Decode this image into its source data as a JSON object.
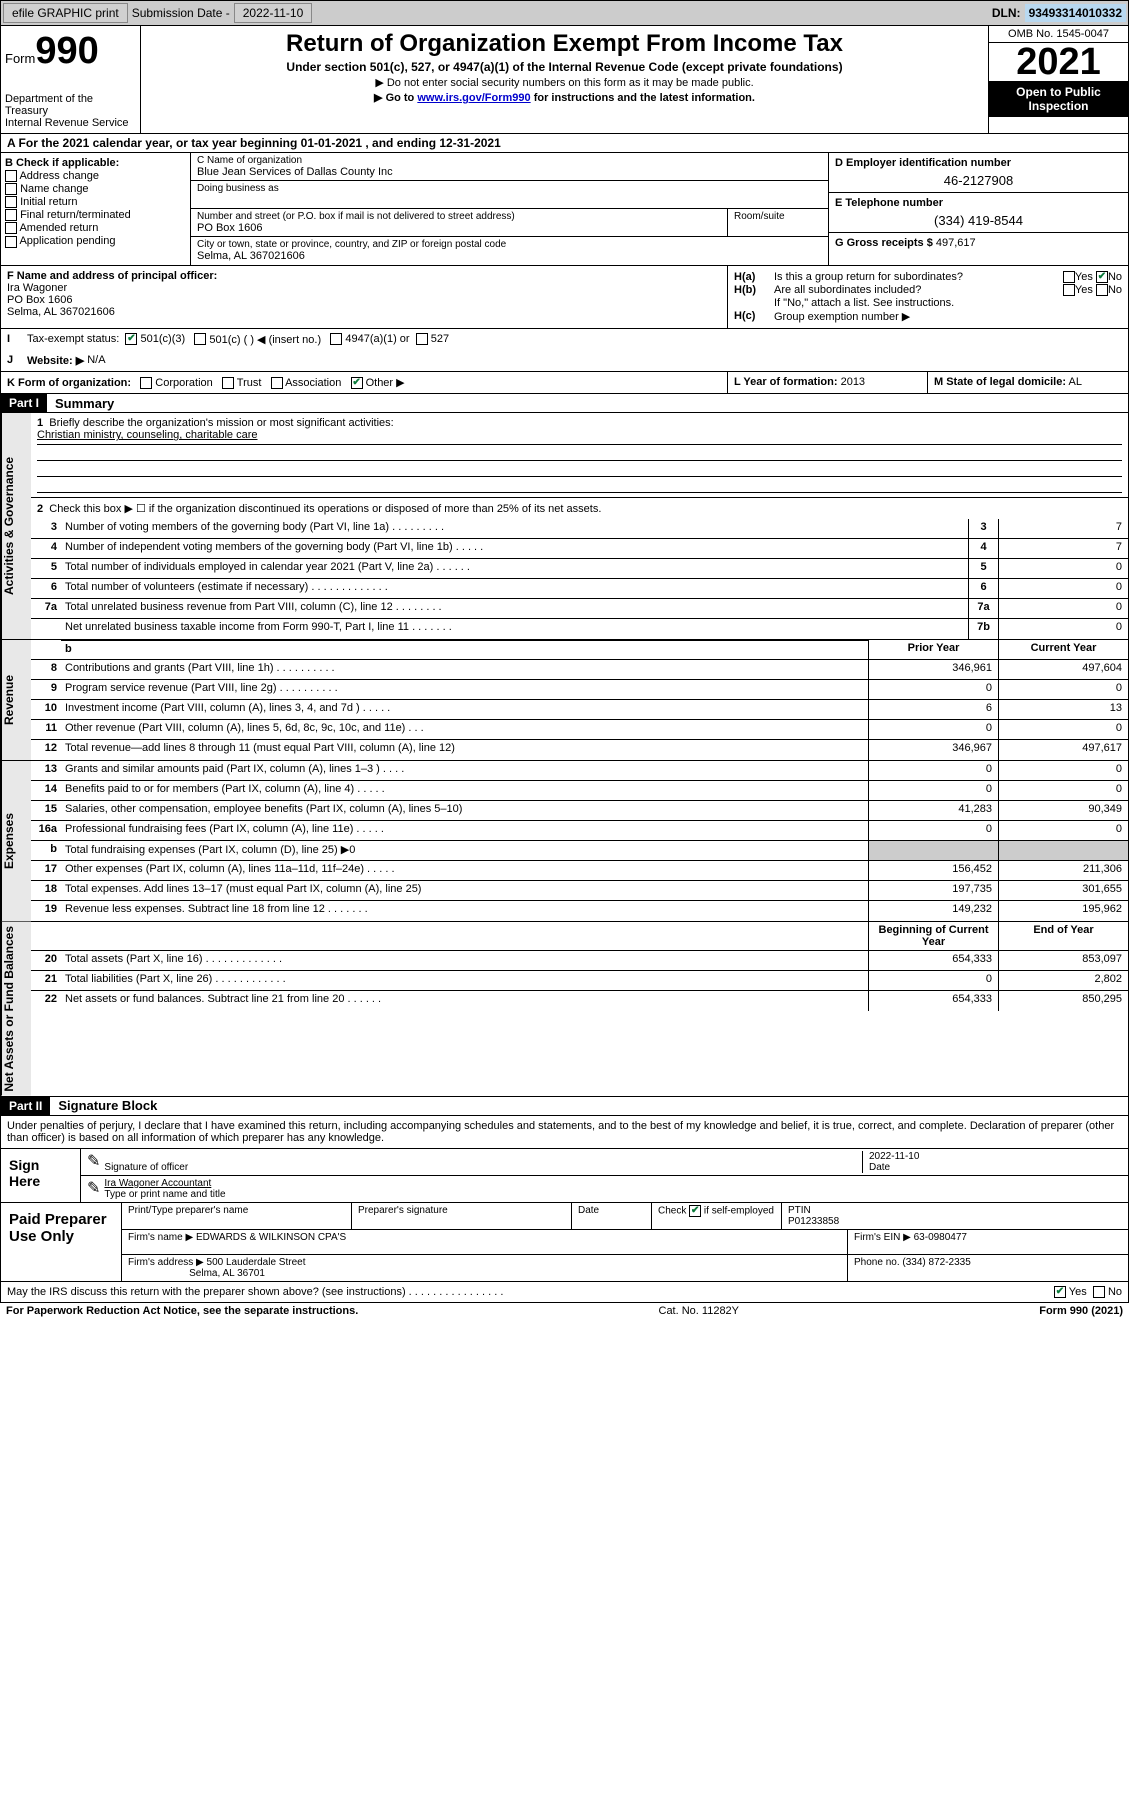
{
  "topbar": {
    "efile": "efile GRAPHIC print",
    "subdate_lbl": "Submission Date -",
    "subdate": "2022-11-10",
    "dln_lbl": "DLN:",
    "dln": "93493314010332"
  },
  "header": {
    "form_word": "Form",
    "form_num": "990",
    "dept": "Department of the Treasury",
    "irs": "Internal Revenue Service",
    "title": "Return of Organization Exempt From Income Tax",
    "sub": "Under section 501(c), 527, or 4947(a)(1) of the Internal Revenue Code (except private foundations)",
    "note1": "▶ Do not enter social security numbers on this form as it may be made public.",
    "note2_pre": "▶ Go to ",
    "note2_link": "www.irs.gov/Form990",
    "note2_post": " for instructions and the latest information.",
    "omb": "OMB No. 1545-0047",
    "year": "2021",
    "inspect": "Open to Public Inspection"
  },
  "row_a": "A For the 2021 calendar year, or tax year beginning 01-01-2021   , and ending 12-31-2021",
  "sec_b": {
    "hdr": "B Check if applicable:",
    "opts": [
      "Address change",
      "Name change",
      "Initial return",
      "Final return/terminated",
      "Amended return",
      "Application pending"
    ]
  },
  "sec_c": {
    "name_lbl": "C Name of organization",
    "name": "Blue Jean Services of Dallas County Inc",
    "dba_lbl": "Doing business as",
    "dba": "",
    "street_lbl": "Number and street (or P.O. box if mail is not delivered to street address)",
    "street": "PO Box 1606",
    "room_lbl": "Room/suite",
    "city_lbl": "City or town, state or province, country, and ZIP or foreign postal code",
    "city": "Selma, AL  367021606"
  },
  "sec_d": {
    "ein_lbl": "D Employer identification number",
    "ein": "46-2127908",
    "tel_lbl": "E Telephone number",
    "tel": "(334) 419-8544",
    "gross_lbl": "G Gross receipts $",
    "gross": "497,617"
  },
  "sec_f": {
    "lbl": "F Name and address of principal officer:",
    "name": "Ira Wagoner",
    "addr1": "PO Box 1606",
    "addr2": "Selma, AL  367021606"
  },
  "sec_h": {
    "a_lbl": "H(a)",
    "a_txt": "Is this a group return for subordinates?",
    "b_lbl": "H(b)",
    "b_txt": "Are all subordinates included?",
    "b_note": "If \"No,\" attach a list. See instructions.",
    "c_lbl": "H(c)",
    "c_txt": "Group exemption number ▶",
    "yes": "Yes",
    "no": "No"
  },
  "row_i": {
    "lbl": "I",
    "txt": "Tax-exempt status:",
    "o1": "501(c)(3)",
    "o2": "501(c) (  ) ◀ (insert no.)",
    "o3": "4947(a)(1) or",
    "o4": "527"
  },
  "row_j": {
    "lbl": "J",
    "txt": "Website: ▶",
    "val": "N/A"
  },
  "row_k": {
    "lbl": "K Form of organization:",
    "o1": "Corporation",
    "o2": "Trust",
    "o3": "Association",
    "o4": "Other ▶",
    "l_lbl": "L Year of formation:",
    "l_val": "2013",
    "m_lbl": "M State of legal domicile:",
    "m_val": "AL"
  },
  "part1": {
    "hdr": "Part I",
    "title": "Summary",
    "line1_lbl": "1",
    "line1_txt": "Briefly describe the organization's mission or most significant activities:",
    "line1_val": "Christian ministry, counseling, charitable care",
    "line2_lbl": "2",
    "line2_txt": "Check this box ▶ ☐  if the organization discontinued its operations or disposed of more than 25% of its net assets."
  },
  "sides": {
    "gov": "Activities & Governance",
    "rev": "Revenue",
    "exp": "Expenses",
    "net": "Net Assets or Fund Balances"
  },
  "gov_lines": [
    {
      "n": "3",
      "d": "Number of voting members of the governing body (Part VI, line 1a)  .   .   .   .   .   .   .   .   .",
      "box": "3",
      "v": "7"
    },
    {
      "n": "4",
      "d": "Number of independent voting members of the governing body (Part VI, line 1b)  .   .   .   .   .",
      "box": "4",
      "v": "7"
    },
    {
      "n": "5",
      "d": "Total number of individuals employed in calendar year 2021 (Part V, line 2a)  .   .   .   .   .   .",
      "box": "5",
      "v": "0"
    },
    {
      "n": "6",
      "d": "Total number of volunteers (estimate if necessary)  .   .   .   .   .   .   .   .   .   .   .   .   .",
      "box": "6",
      "v": "0"
    },
    {
      "n": "7a",
      "d": "Total unrelated business revenue from Part VIII, column (C), line 12  .   .   .   .   .   .   .   .",
      "box": "7a",
      "v": "0"
    },
    {
      "n": "",
      "d": "Net unrelated business taxable income from Form 990-T, Part I, line 11  .   .   .   .   .   .   .",
      "box": "7b",
      "v": "0"
    }
  ],
  "cols": {
    "prior": "Prior Year",
    "curr": "Current Year",
    "boy": "Beginning of Current Year",
    "eoy": "End of Year"
  },
  "rev_lines": [
    {
      "n": "8",
      "d": "Contributions and grants (Part VIII, line 1h)  .   .   .   .   .   .   .   .   .   .",
      "p": "346,961",
      "c": "497,604"
    },
    {
      "n": "9",
      "d": "Program service revenue (Part VIII, line 2g)  .   .   .   .   .   .   .   .   .   .",
      "p": "0",
      "c": "0"
    },
    {
      "n": "10",
      "d": "Investment income (Part VIII, column (A), lines 3, 4, and 7d )  .   .   .   .   .",
      "p": "6",
      "c": "13"
    },
    {
      "n": "11",
      "d": "Other revenue (Part VIII, column (A), lines 5, 6d, 8c, 9c, 10c, and 11e)  .   .   .",
      "p": "0",
      "c": "0"
    },
    {
      "n": "12",
      "d": "Total revenue—add lines 8 through 11 (must equal Part VIII, column (A), line 12)",
      "p": "346,967",
      "c": "497,617"
    }
  ],
  "exp_lines": [
    {
      "n": "13",
      "d": "Grants and similar amounts paid (Part IX, column (A), lines 1–3 )  .   .   .   .",
      "p": "0",
      "c": "0"
    },
    {
      "n": "14",
      "d": "Benefits paid to or for members (Part IX, column (A), line 4)  .   .   .   .   .",
      "p": "0",
      "c": "0"
    },
    {
      "n": "15",
      "d": "Salaries, other compensation, employee benefits (Part IX, column (A), lines 5–10)",
      "p": "41,283",
      "c": "90,349"
    },
    {
      "n": "16a",
      "d": "Professional fundraising fees (Part IX, column (A), line 11e)  .   .   .   .   .",
      "p": "0",
      "c": "0"
    },
    {
      "n": "b",
      "d": "Total fundraising expenses (Part IX, column (D), line 25) ▶0",
      "p": "",
      "c": "",
      "shade": true
    },
    {
      "n": "17",
      "d": "Other expenses (Part IX, column (A), lines 11a–11d, 11f–24e)  .   .   .   .   .",
      "p": "156,452",
      "c": "211,306"
    },
    {
      "n": "18",
      "d": "Total expenses. Add lines 13–17 (must equal Part IX, column (A), line 25)",
      "p": "197,735",
      "c": "301,655"
    },
    {
      "n": "19",
      "d": "Revenue less expenses. Subtract line 18 from line 12  .   .   .   .   .   .   .",
      "p": "149,232",
      "c": "195,962"
    }
  ],
  "net_lines": [
    {
      "n": "20",
      "d": "Total assets (Part X, line 16)  .   .   .   .   .   .   .   .   .   .   .   .   .",
      "p": "654,333",
      "c": "853,097"
    },
    {
      "n": "21",
      "d": "Total liabilities (Part X, line 26)  .   .   .   .   .   .   .   .   .   .   .   .",
      "p": "0",
      "c": "2,802"
    },
    {
      "n": "22",
      "d": "Net assets or fund balances. Subtract line 21 from line 20  .   .   .   .   .   .",
      "p": "654,333",
      "c": "850,295"
    }
  ],
  "part2": {
    "hdr": "Part II",
    "title": "Signature Block"
  },
  "sig": {
    "intro": "Under penalties of perjury, I declare that I have examined this return, including accompanying schedules and statements, and to the best of my knowledge and belief, it is true, correct, and complete. Declaration of preparer (other than officer) is based on all information of which preparer has any knowledge.",
    "here": "Sign Here",
    "sig_lbl": "Signature of officer",
    "date_lbl": "Date",
    "date": "2022-11-10",
    "name": "Ira Wagoner Accountant",
    "name_lbl": "Type or print name and title"
  },
  "prep": {
    "title": "Paid Preparer Use Only",
    "name_lbl": "Print/Type preparer's name",
    "sig_lbl": "Preparer's signature",
    "date_lbl": "Date",
    "check_lbl": "Check",
    "self": "if self-employed",
    "ptin_lbl": "PTIN",
    "ptin": "P01233858",
    "firm_lbl": "Firm's name   ▶",
    "firm": "EDWARDS & WILKINSON CPA'S",
    "ein_lbl": "Firm's EIN ▶",
    "ein": "63-0980477",
    "addr_lbl": "Firm's address ▶",
    "addr1": "500 Lauderdale Street",
    "addr2": "Selma, AL  36701",
    "phone_lbl": "Phone no.",
    "phone": "(334) 872-2335",
    "discuss": "May the IRS discuss this return with the preparer shown above? (see instructions)  .   .   .   .   .   .   .   .   .   .   .   .   .   .   .   ."
  },
  "footer": {
    "left": "For Paperwork Reduction Act Notice, see the separate instructions.",
    "mid": "Cat. No. 11282Y",
    "right": "Form 990 (2021)"
  }
}
